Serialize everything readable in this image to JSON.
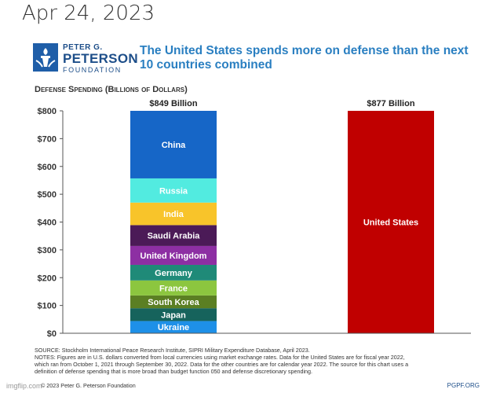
{
  "date_label": "Apr 24, 2023",
  "logo": {
    "line1": "PETER G.",
    "line2": "PETERSON",
    "line3": "FOUNDATION"
  },
  "headline": "The United States spends more on defense than the next 10 countries combined",
  "footer": {
    "source": "SOURCE: Stockholm International Peace Research Institute, SIPRI Military Expenditure Database, April 2023.",
    "notes1": "NOTES: Figures are in U.S. dollars converted from local currencies using market exchange rates. Data for the United States are for fiscal year 2022,",
    "notes2": "which ran from October 1, 2021 through September 30, 2022. Data for the other countries are for calendar year 2022. The source for this chart uses a",
    "notes3": "definition of defense spending that is more broad than budget function 050 and defense discretionary spending.",
    "copyright": "© 2023 Peter G. Peterson Foundation",
    "site": "PGPF.ORG",
    "watermark": "imgflip.com"
  },
  "colors": {
    "us": "#c00000",
    "headline": "#2a7fc1",
    "brand": "#1d4e89"
  },
  "chart_data": {
    "type": "bar",
    "title": "",
    "ylabel": "Defense Spending (Billions of Dollars)",
    "ylim": [
      0,
      800
    ],
    "yticks": [
      0,
      100,
      200,
      300,
      400,
      500,
      600,
      700,
      800
    ],
    "ytick_labels": [
      "$0",
      "$100",
      "$200",
      "$300",
      "$400",
      "$500",
      "$600",
      "$700",
      "$800"
    ],
    "grid": false,
    "bars": [
      {
        "total_label": "$849 Billion",
        "stacked": true,
        "segments": [
          {
            "name": "Ukraine",
            "value": 44,
            "color": "#1e90e8"
          },
          {
            "name": "Japan",
            "value": 46,
            "color": "#16635c"
          },
          {
            "name": "South Korea",
            "value": 46,
            "color": "#5b7f23"
          },
          {
            "name": "France",
            "value": 54,
            "color": "#8cc63f"
          },
          {
            "name": "Germany",
            "value": 56,
            "color": "#1f8a78"
          },
          {
            "name": "United Kingdom",
            "value": 68,
            "color": "#8d2fa3"
          },
          {
            "name": "Saudi Arabia",
            "value": 75,
            "color": "#4b1a57"
          },
          {
            "name": "India",
            "value": 81,
            "color": "#f8c42a"
          },
          {
            "name": "Russia",
            "value": 87,
            "color": "#52ebe0"
          },
          {
            "name": "China",
            "value": 292,
            "color": "#1666c7"
          }
        ]
      },
      {
        "total_label": "$877 Billion",
        "stacked": false,
        "segments": [
          {
            "name": "United States",
            "value": 877,
            "color": "#c00000"
          }
        ]
      }
    ]
  }
}
